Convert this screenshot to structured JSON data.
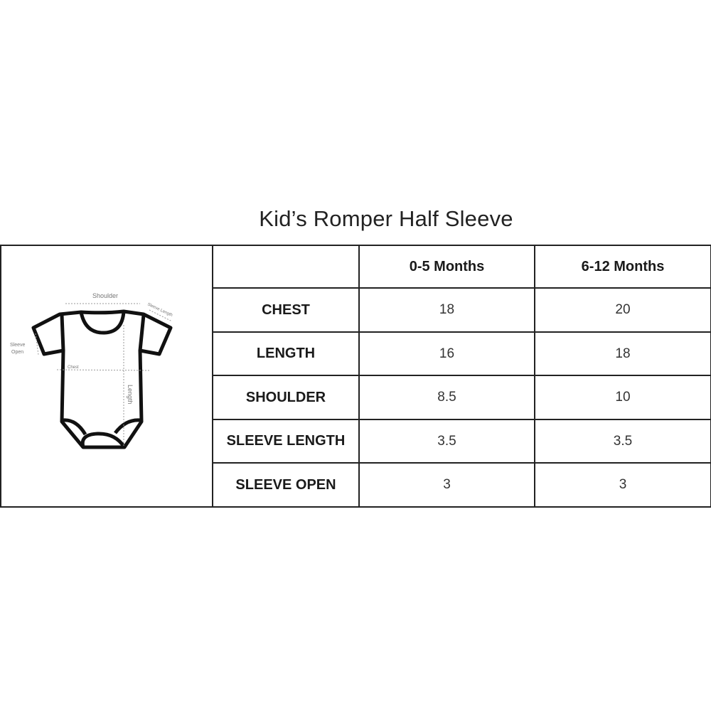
{
  "title": "Kid’s Romper Half Sleeve",
  "diagram": {
    "labels": {
      "shoulder": "Shoulder",
      "sleeve_length": "Sleeve Length",
      "sleeve_open_1": "Sleeve",
      "sleeve_open_2": "Open",
      "chest": "Chest",
      "length": "Length"
    }
  },
  "table": {
    "columns": [
      "",
      "0-5 Months",
      "6-12 Months"
    ],
    "rows": [
      {
        "label": "CHEST",
        "values": [
          "18",
          "20"
        ]
      },
      {
        "label": "LENGTH",
        "values": [
          "16",
          "18"
        ]
      },
      {
        "label": "SHOULDER",
        "values": [
          "8.5",
          "10"
        ]
      },
      {
        "label": "SLEEVE LENGTH",
        "values": [
          "3.5",
          "3.5"
        ]
      },
      {
        "label": "SLEEVE OPEN",
        "values": [
          "3",
          "3"
        ]
      }
    ]
  }
}
